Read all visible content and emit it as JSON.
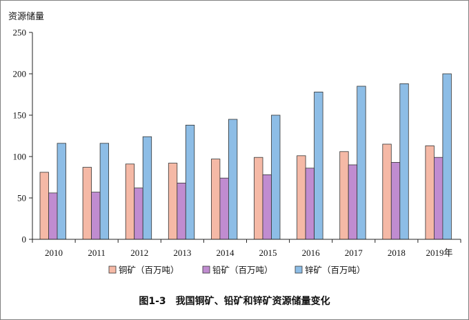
{
  "chart_data": {
    "type": "bar",
    "title": "图1-3　我国铜矿、铅矿和锌矿资源储量变化",
    "ylabel": "资源储量",
    "xlabel": "",
    "categories": [
      "2010",
      "2011",
      "2012",
      "2013",
      "2014",
      "2015",
      "2016",
      "2017",
      "2018",
      "2019年"
    ],
    "ylim": [
      0,
      250
    ],
    "yticks": [
      "0",
      "50",
      "100",
      "150",
      "200",
      "250"
    ],
    "grid": false,
    "legend_position": "bottom",
    "series": [
      {
        "name": "铜矿（百万吨）",
        "color": "#f5b9a6",
        "values": [
          81,
          87,
          91,
          92,
          97,
          99,
          101,
          106,
          115,
          113
        ]
      },
      {
        "name": "铅矿（百万吨）",
        "color": "#c08cd0",
        "values": [
          56,
          57,
          62,
          68,
          74,
          78,
          86,
          90,
          93,
          99
        ]
      },
      {
        "name": "锌矿（百万吨）",
        "color": "#8dbde6",
        "values": [
          116,
          116,
          124,
          138,
          145,
          150,
          178,
          185,
          188,
          200
        ]
      }
    ]
  }
}
